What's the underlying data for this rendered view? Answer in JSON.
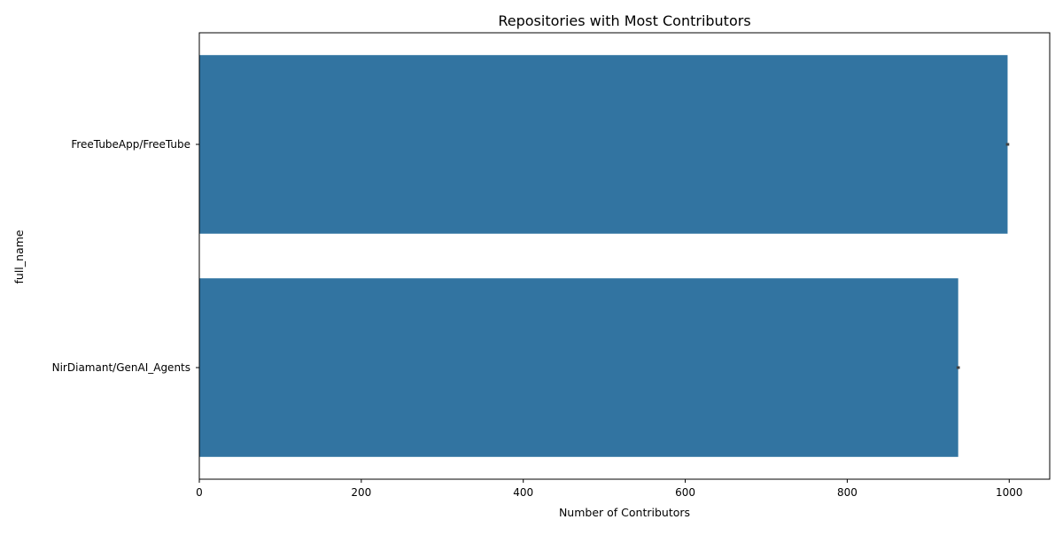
{
  "chart_data": {
    "type": "bar",
    "orientation": "horizontal",
    "title": "Repositories with Most Contributors",
    "xlabel": "Number of Contributors",
    "ylabel": "full_name",
    "categories": [
      "FreeTubeApp/FreeTube",
      "NirDiamant/GenAI_Agents"
    ],
    "values": [
      998,
      937
    ],
    "error_bars": [
      [
        996,
        1000
      ],
      [
        935,
        939
      ]
    ],
    "xlim": [
      0,
      1050
    ],
    "xticks": [
      0,
      200,
      400,
      600,
      800,
      1000
    ],
    "grid": false,
    "legend": "none",
    "colors": {
      "bar": "#3274a1",
      "error_bar": "#424242",
      "axis": "#000000"
    }
  }
}
